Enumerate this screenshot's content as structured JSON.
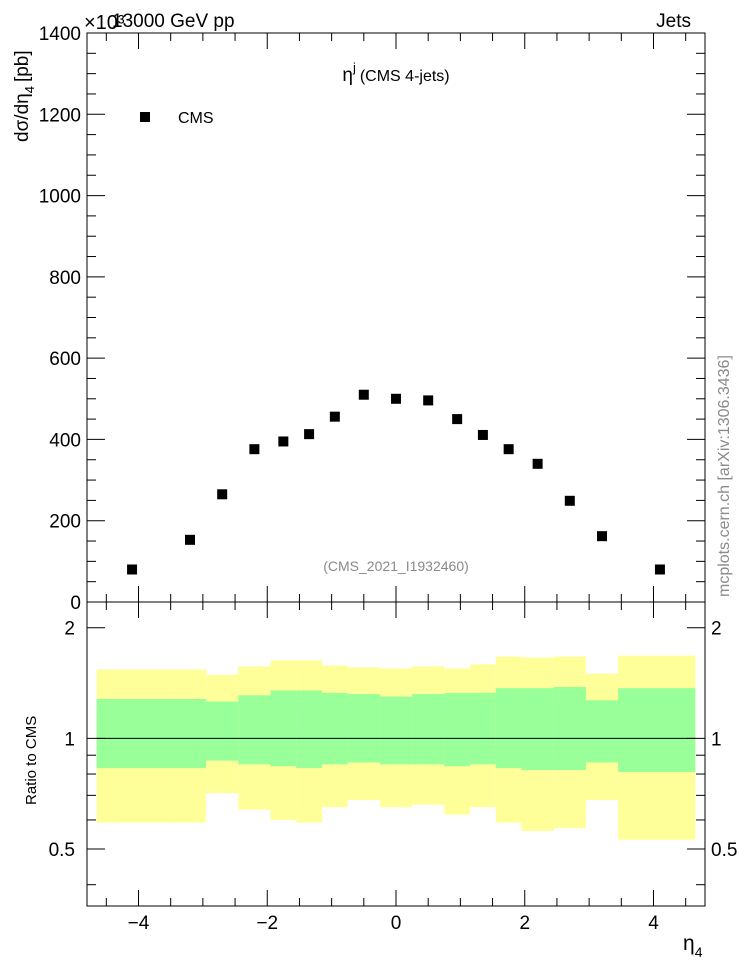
{
  "header": {
    "beam_label": "13000 GeV pp",
    "process_label": "Jets",
    "y_exponent_label": "×10³"
  },
  "side_label": "mcplots.cern.ch [arXiv:1306.3436]",
  "chart_data": [
    {
      "type": "scatter",
      "title": "η",
      "title_superscript": "j",
      "subtitle": "(CMS 4-jets)",
      "ylabel": "dσ/dη",
      "ylabel_subscript": "4",
      "ylabel_unit": "[pb]",
      "analysis_label": "(CMS_2021_I1932460)",
      "xlim": [
        -4.8,
        4.8
      ],
      "ylim": [
        0,
        1400
      ],
      "y_scale_note": "×10³",
      "x_ticks": [
        -4,
        -2,
        0,
        2,
        4
      ],
      "y_ticks": [
        0,
        200,
        400,
        600,
        800,
        1000,
        1200,
        1400
      ],
      "legend_position": "top-left",
      "series": [
        {
          "name": "CMS",
          "marker": "square",
          "color": "#000000",
          "x": [
            -4.1,
            -3.2,
            -2.7,
            -2.2,
            -1.75,
            -1.35,
            -0.95,
            -0.5,
            0.0,
            0.5,
            0.95,
            1.35,
            1.75,
            2.2,
            2.7,
            3.2,
            4.1
          ],
          "y": [
            80,
            153,
            265,
            376,
            395,
            413,
            456,
            510,
            500,
            496,
            450,
            411,
            376,
            340,
            249,
            162,
            80
          ]
        }
      ]
    },
    {
      "type": "area",
      "ylabel": "Ratio to CMS",
      "xlabel": "η",
      "xlabel_subscript": "4",
      "xlim": [
        -4.8,
        4.8
      ],
      "ylim": [
        0.35,
        2.35
      ],
      "y_ticks_labeled": [
        0.5,
        1,
        2
      ],
      "x_ticks": [
        -4,
        -2,
        0,
        2,
        4
      ],
      "reference_line": 1,
      "bands": {
        "bin_edges": [
          -4.65,
          -3.45,
          -2.95,
          -2.45,
          -1.95,
          -1.55,
          -1.15,
          -0.75,
          -0.25,
          0.25,
          0.75,
          1.15,
          1.55,
          1.95,
          2.45,
          2.95,
          3.45,
          4.65
        ],
        "inner": {
          "color": "#99ff99",
          "low": [
            0.83,
            0.83,
            0.87,
            0.85,
            0.84,
            0.83,
            0.85,
            0.86,
            0.85,
            0.85,
            0.84,
            0.85,
            0.83,
            0.82,
            0.82,
            0.86,
            0.81
          ],
          "high": [
            1.28,
            1.28,
            1.26,
            1.31,
            1.35,
            1.35,
            1.33,
            1.32,
            1.3,
            1.32,
            1.33,
            1.33,
            1.37,
            1.37,
            1.38,
            1.27,
            1.37
          ]
        },
        "outer": {
          "color": "#ffff99",
          "low": [
            0.59,
            0.59,
            0.71,
            0.64,
            0.6,
            0.59,
            0.65,
            0.68,
            0.65,
            0.66,
            0.62,
            0.65,
            0.59,
            0.56,
            0.57,
            0.68,
            0.53
          ],
          "high": [
            1.54,
            1.54,
            1.49,
            1.57,
            1.63,
            1.63,
            1.58,
            1.56,
            1.55,
            1.57,
            1.55,
            1.59,
            1.67,
            1.66,
            1.67,
            1.5,
            1.68
          ]
        }
      }
    }
  ]
}
